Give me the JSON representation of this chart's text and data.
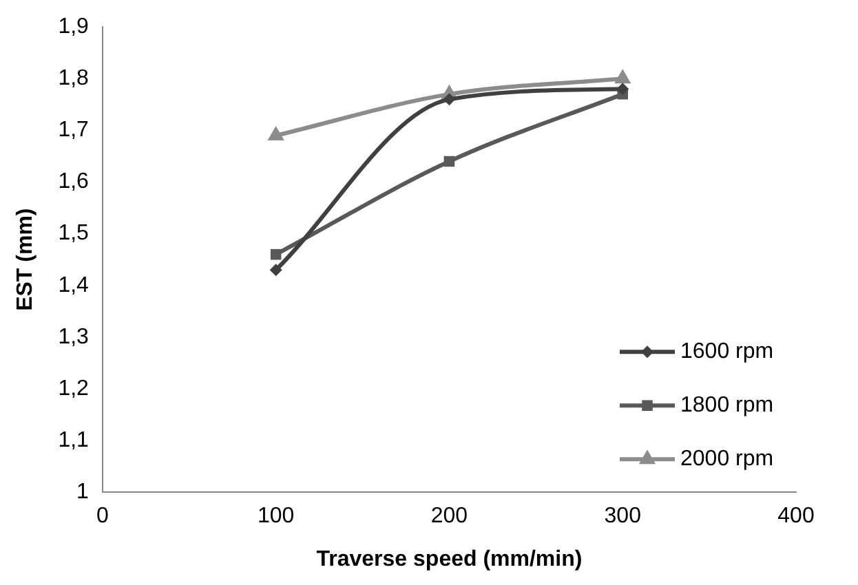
{
  "chart_data": {
    "type": "line",
    "xlabel": "Traverse speed (mm/min)",
    "ylabel": "EST (mm)",
    "x": [
      100,
      200,
      300
    ],
    "series": [
      {
        "name": "1600 rpm",
        "color": "#404040",
        "marker": "diamond",
        "values": [
          1.43,
          1.76,
          1.78
        ]
      },
      {
        "name": "1800 rpm",
        "color": "#595959",
        "marker": "square",
        "values": [
          1.46,
          1.64,
          1.77
        ]
      },
      {
        "name": "2000 rpm",
        "color": "#8c8c8c",
        "marker": "triangle",
        "values": [
          1.69,
          1.77,
          1.8
        ]
      }
    ],
    "xlim": [
      0,
      400
    ],
    "xticks": [
      0,
      100,
      200,
      300,
      400
    ],
    "ylim": [
      1,
      1.9
    ],
    "yticks": [
      1,
      {
        "value": 1.1,
        "label": "1,1"
      },
      {
        "value": 1.2,
        "label": "1,2"
      },
      {
        "value": 1.3,
        "label": "1,3"
      },
      {
        "value": 1.4,
        "label": "1,4"
      },
      {
        "value": 1.5,
        "label": "1,5"
      },
      {
        "value": 1.6,
        "label": "1,6"
      },
      {
        "value": 1.7,
        "label": "1,7"
      },
      {
        "value": 1.8,
        "label": "1,8"
      },
      {
        "value": 1.9,
        "label": "1,9"
      }
    ],
    "grid": false,
    "legend": "right",
    "line_style": "solid"
  }
}
